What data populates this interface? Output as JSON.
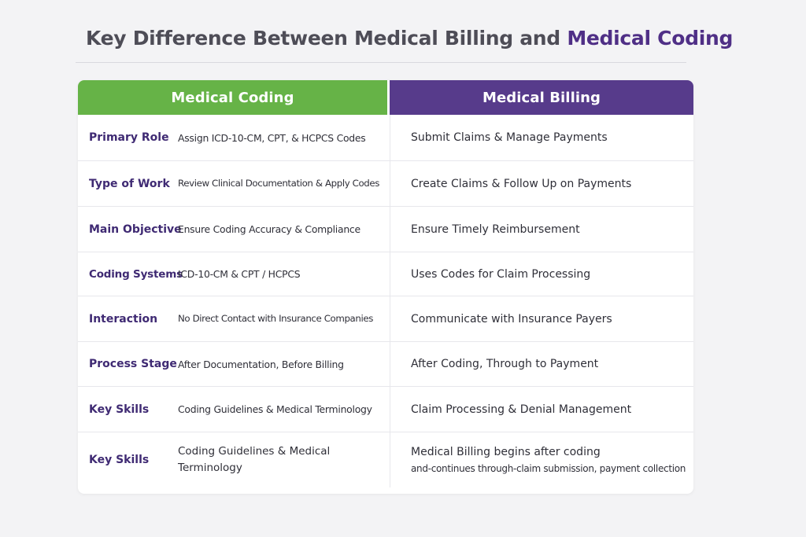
{
  "title": {
    "part1": "Key Difference Between Medical Billing and ",
    "part2": "Medical Coding"
  },
  "headers": {
    "coding": "Medical Coding",
    "billing": "Medical Billing"
  },
  "rows": [
    {
      "label": "Primary Role",
      "coding": "Assign ICD-10-CM, CPT, & HCPCS Codes",
      "billing": "Submit Claims & Manage Payments"
    },
    {
      "label": "Type of Work",
      "coding": "Review Clinical Documentation & Apply Codes",
      "billing": "Create Claims & Follow Up on Payments"
    },
    {
      "label": "Main Objective",
      "coding": "Ensure Coding Accuracy & Compliance",
      "billing": "Ensure Timely Reimbursement"
    },
    {
      "label": "Coding Systems",
      "coding": "ICD-10-CM & CPT / HCPCS",
      "billing": "Uses Codes for Claim Processing"
    },
    {
      "label": "Interaction",
      "coding": "No Direct Contact with Insurance Companies",
      "billing": "Communicate with Insurance Payers"
    },
    {
      "label": "Process Stage",
      "coding": "After Documentation, Before Billing",
      "billing": "After Coding, Through to Payment"
    },
    {
      "label": "Key Skills",
      "coding": "Coding Guidelines & Medical Terminology",
      "billing": "Claim Processing & Denial Management"
    },
    {
      "label": "Key Skills",
      "coding": "Coding Guidelines & Medical Terminology",
      "billing_line1": "Medical Billing begins after coding",
      "billing_line2": "and-continues through-claim submission, payment collection"
    }
  ],
  "colors": {
    "coding_header": "#66b347",
    "billing_header": "#573b8b",
    "label_text": "#3f2a73"
  }
}
